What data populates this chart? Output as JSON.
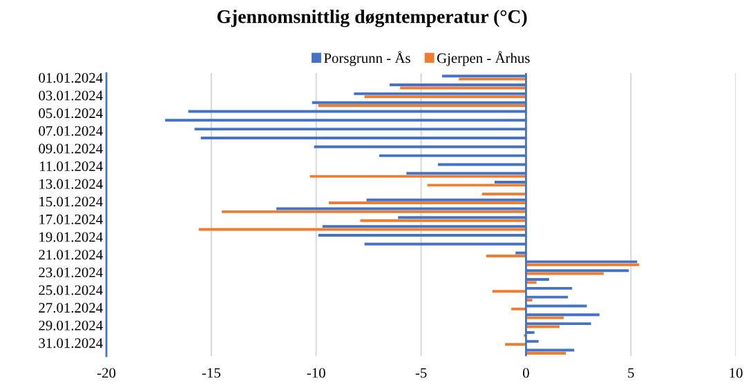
{
  "chart_data": {
    "type": "bar",
    "orientation": "horizontal",
    "title": "Gjennomsnittlig døgntemperatur (°C)",
    "categories": [
      "01.01.2024",
      null,
      "03.01.2024",
      null,
      "05.01.2024",
      null,
      "07.01.2024",
      null,
      "09.01.2024",
      null,
      "11.01.2024",
      null,
      "13.01.2024",
      null,
      "15.01.2024",
      null,
      "17.01.2024",
      null,
      "19.01.2024",
      null,
      "21.01.2024",
      null,
      "23.01.2024",
      null,
      "25.01.2024",
      null,
      "27.01.2024",
      null,
      "29.01.2024",
      null,
      "31.01.2024",
      null
    ],
    "series": [
      {
        "name": "Porsgrunn - Ås",
        "color": "#4472c4",
        "values": [
          -4.0,
          -6.5,
          -8.2,
          -10.2,
          -16.1,
          -17.2,
          -15.8,
          -15.5,
          -10.1,
          -7.0,
          -4.2,
          -5.7,
          -1.5,
          null,
          -7.6,
          -11.9,
          -6.1,
          -9.7,
          -9.9,
          -7.7,
          -0.5,
          5.3,
          4.9,
          1.1,
          2.2,
          2.0,
          2.9,
          3.5,
          3.1,
          0.4,
          0.6,
          2.3
        ]
      },
      {
        "name": "Gjerpen - Århus",
        "color": "#ed7d31",
        "values": [
          -3.2,
          -6.0,
          -7.7,
          -9.9,
          null,
          null,
          null,
          null,
          null,
          null,
          null,
          -10.3,
          -4.7,
          -2.1,
          -9.4,
          -14.5,
          -7.9,
          -15.6,
          null,
          null,
          -1.9,
          5.4,
          3.7,
          0.5,
          -1.6,
          0.3,
          -0.7,
          1.8,
          1.6,
          -0.1,
          -1.0,
          1.9
        ]
      }
    ],
    "xlim": [
      -20,
      10
    ],
    "xticks": [
      -20,
      -15,
      -10,
      -5,
      0,
      5,
      10
    ],
    "grid": "x",
    "legend": "top",
    "ref_lines": [
      {
        "axis": "x",
        "value": 0,
        "color": "#4472c4"
      }
    ]
  }
}
